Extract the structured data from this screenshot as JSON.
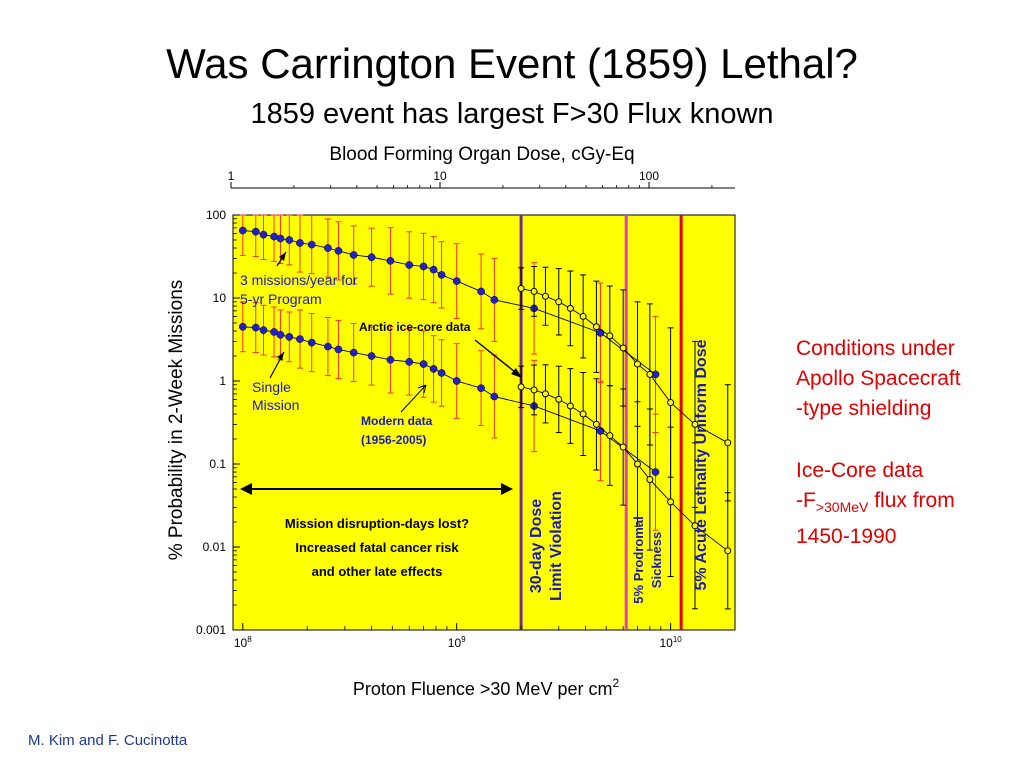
{
  "slide": {
    "title": "Was Carrington Event (1859) Lethal?",
    "subtitle": "1859 event has largest F>30 Flux known",
    "author": "M. Kim and F. Cucinotta",
    "notes": {
      "line1": "Conditions under",
      "line2": "Apollo Spacecraft",
      "line3": "-type shielding",
      "line4": "Ice-Core data",
      "line5_prefix": "-F",
      "line5_sub": ">30MeV",
      "line5_suffix": " flux from",
      "line6": "1450-1990"
    }
  },
  "chart_data": {
    "type": "scatter",
    "title": "",
    "top_axis_label": "Blood Forming Organ Dose, cGy-Eq",
    "top_axis_ticks": [
      "1",
      "10",
      "100"
    ],
    "xlabel": "Proton Fluence >30 MeV  per cm",
    "xlabel_sup": "2",
    "ylabel": "% Probability in 2-Week Missions",
    "xscale": "log",
    "yscale": "log",
    "xlim": [
      90000000,
      20000000000
    ],
    "ylim": [
      0.001,
      100
    ],
    "x_ticks": [
      {
        "base": "10",
        "exp": "8",
        "value": 100000000
      },
      {
        "base": "10",
        "exp": "9",
        "value": 1000000000
      },
      {
        "base": "10",
        "exp": "10",
        "value": 10000000000
      }
    ],
    "y_ticks": [
      {
        "label": "100",
        "value": 100
      },
      {
        "label": "10",
        "value": 10
      },
      {
        "label": "1",
        "value": 1
      },
      {
        "label": "0.1",
        "value": 0.1
      },
      {
        "label": "0.01",
        "value": 0.01
      },
      {
        "label": "0.001",
        "value": 0.001
      }
    ],
    "plot_background": "#ffff00",
    "series": [
      {
        "name": "3 missions/year for 5-yr Program",
        "marker": "filled-blue",
        "x": [
          100000000,
          115000000,
          125000000,
          140000000,
          150000000,
          165000000,
          185000000,
          210000000,
          250000000,
          280000000,
          330000000,
          400000000,
          490000000,
          600000000,
          700000000,
          780000000,
          850000000,
          1000000000,
          1300000000,
          1500000000,
          2300000000,
          4700000000,
          8500000000
        ],
        "y": [
          65,
          63,
          58,
          55,
          52,
          50,
          46,
          44,
          40,
          37,
          33,
          31,
          28,
          25,
          24,
          22,
          19,
          16,
          12,
          9.5,
          7.5,
          3.8,
          1.2
        ],
        "err": [
          0.3,
          0.3,
          0.3,
          0.3,
          0.3,
          0.3,
          0.35,
          0.35,
          0.35,
          0.35,
          0.35,
          0.35,
          0.4,
          0.4,
          0.4,
          0.4,
          0.4,
          0.45,
          0.45,
          0.5,
          0.55,
          0.6,
          0.7
        ]
      },
      {
        "name": "Single Mission",
        "marker": "filled-blue",
        "x": [
          100000000,
          115000000,
          125000000,
          140000000,
          150000000,
          165000000,
          185000000,
          210000000,
          250000000,
          280000000,
          330000000,
          400000000,
          490000000,
          600000000,
          700000000,
          780000000,
          850000000,
          1000000000,
          1300000000,
          1500000000,
          2300000000,
          4700000000,
          8500000000
        ],
        "y": [
          4.5,
          4.4,
          4.1,
          3.9,
          3.6,
          3.4,
          3.2,
          2.9,
          2.6,
          2.4,
          2.2,
          2.0,
          1.8,
          1.7,
          1.6,
          1.4,
          1.25,
          1.0,
          0.82,
          0.65,
          0.5,
          0.25,
          0.08
        ],
        "err": [
          0.3,
          0.3,
          0.3,
          0.3,
          0.3,
          0.3,
          0.35,
          0.35,
          0.35,
          0.35,
          0.35,
          0.35,
          0.4,
          0.4,
          0.4,
          0.4,
          0.4,
          0.45,
          0.45,
          0.5,
          0.55,
          0.6,
          0.7
        ]
      },
      {
        "name": "Arctic ice-core data (program)",
        "marker": "open-circle",
        "x": [
          2000000000,
          2300000000,
          2600000000,
          3000000000,
          3400000000,
          3900000000,
          4500000000,
          5200000000,
          6000000000,
          7000000000,
          8000000000,
          10000000000,
          13000000000,
          18500000000
        ],
        "y": [
          13,
          12,
          10.5,
          9,
          7.5,
          6,
          4.5,
          3.5,
          2.5,
          1.6,
          1.2,
          0.55,
          0.3,
          0.18
        ],
        "err": [
          0.25,
          0.3,
          0.35,
          0.4,
          0.45,
          0.5,
          0.55,
          0.6,
          0.7,
          0.75,
          0.85,
          0.9,
          1.0,
          0.7
        ]
      },
      {
        "name": "Arctic ice-core data (single)",
        "marker": "open-circle",
        "x": [
          2000000000,
          2300000000,
          2600000000,
          3000000000,
          3400000000,
          3900000000,
          4500000000,
          5200000000,
          6000000000,
          7000000000,
          8000000000,
          10000000000,
          13000000000,
          18500000000
        ],
        "y": [
          0.85,
          0.78,
          0.7,
          0.6,
          0.5,
          0.4,
          0.3,
          0.22,
          0.16,
          0.1,
          0.065,
          0.035,
          0.018,
          0.009
        ],
        "err": [
          0.25,
          0.3,
          0.35,
          0.4,
          0.45,
          0.5,
          0.55,
          0.6,
          0.7,
          0.75,
          0.85,
          0.9,
          1.0,
          0.7
        ]
      }
    ],
    "threshold_lines": [
      {
        "x": 2000000000,
        "color": "#7a2a8c",
        "label_lines": [
          "30-day Dose",
          "Limit Violation"
        ],
        "label_color": "#1a1ab0"
      },
      {
        "x": 6200000000,
        "color": "#e040c0",
        "label_lines": [
          "5% Prodromal",
          "Sickness"
        ],
        "label_color": "#1a1ab0"
      },
      {
        "x": 11200000000,
        "color": "#e00000",
        "label_lines": [
          "5% Acute Lethality Uniform  Dose"
        ],
        "label_color": "#1a1ab0"
      }
    ],
    "annotations": {
      "program": [
        "3 missions/year for",
        "5-yr Program"
      ],
      "single": [
        "Single",
        "Mission"
      ],
      "ice_core": "Arctic ice-core data",
      "modern": [
        "Modern data",
        "(1956-2005)"
      ],
      "box_text": [
        "Mission disruption-days lost?",
        "Increased fatal cancer risk",
        "and other late effects"
      ]
    }
  }
}
